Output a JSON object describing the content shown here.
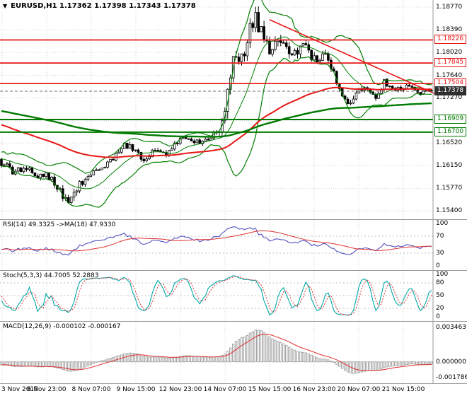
{
  "header": {
    "marker": "▼",
    "ohlc_line": "EURUSD,H1 1.17362 1.17398 1.17343 1.17378"
  },
  "chart_data": {
    "type": "candlestick",
    "symbol": "EURUSD",
    "timeframe": "H1",
    "ohlc": {
      "open": "1.17362",
      "high": "1.17398",
      "low": "1.17343",
      "close": "1.17378"
    },
    "price_axis_ticks": [
      "1.18770",
      "1.18390",
      "1.18020",
      "1.17640",
      "1.17270",
      "1.16890",
      "1.16520",
      "1.16150",
      "1.15770",
      "1.15400"
    ],
    "price_axis_range": [
      1.154,
      1.1877
    ],
    "time_axis_ticks": [
      "3 Nov 2017",
      "6 Nov 23:00",
      "8 Nov 07:00",
      "9 Nov 15:00",
      "12 Nov 23:00",
      "14 Nov 07:00",
      "15 Nov 15:00",
      "16 Nov 23:00",
      "20 Nov 07:00",
      "21 Nov 15:00"
    ],
    "levels": [
      {
        "price": 1.18226,
        "label": "1.18226",
        "color": "#e81616",
        "kind": "resistance"
      },
      {
        "price": 1.17845,
        "label": "1.17845",
        "color": "#e81616",
        "kind": "resistance"
      },
      {
        "price": 1.17504,
        "label": "1.17504",
        "color": "#e81616",
        "kind": "resistance"
      },
      {
        "price": 1.16909,
        "label": "1.16909",
        "color": "#007a00",
        "kind": "support"
      },
      {
        "price": 1.167,
        "label": "1.16700",
        "color": "#007a00",
        "kind": "support"
      }
    ],
    "current_price": {
      "value": 1.17378,
      "label": "1.17378"
    },
    "trendline": {
      "from_bar": 96,
      "from_price": 1.1856,
      "to_bar": 155,
      "to_price": 1.1734
    },
    "bar_count": 155,
    "price_path_keyframes": [
      [
        0,
        1.1618,
        0.0007
      ],
      [
        4,
        1.1606,
        0.0007
      ],
      [
        8,
        1.1611,
        0.0006
      ],
      [
        13,
        1.1597,
        0.0006
      ],
      [
        16,
        1.1603,
        0.0006
      ],
      [
        19,
        1.1585,
        0.0007
      ],
      [
        23,
        1.1559,
        0.0009
      ],
      [
        25,
        1.1554,
        0.001
      ],
      [
        27,
        1.1578,
        0.0008
      ],
      [
        30,
        1.1592,
        0.0006
      ],
      [
        32,
        1.1598,
        0.0006
      ],
      [
        36,
        1.1613,
        0.0006
      ],
      [
        40,
        1.1622,
        0.0006
      ],
      [
        44,
        1.1652,
        0.0007
      ],
      [
        47,
        1.1643,
        0.0006
      ],
      [
        51,
        1.1625,
        0.0006
      ],
      [
        55,
        1.1642,
        0.0006
      ],
      [
        59,
        1.1634,
        0.0006
      ],
      [
        63,
        1.1656,
        0.0006
      ],
      [
        67,
        1.1661,
        0.0005
      ],
      [
        71,
        1.1651,
        0.0005
      ],
      [
        76,
        1.1667,
        0.0006
      ],
      [
        79,
        1.1683,
        0.001
      ],
      [
        81,
        1.1748,
        0.0017
      ],
      [
        83,
        1.1803,
        0.0018
      ],
      [
        86,
        1.1789,
        0.0015
      ],
      [
        89,
        1.1849,
        0.0016
      ],
      [
        91,
        1.1861,
        0.0014
      ],
      [
        94,
        1.182,
        0.0013
      ],
      [
        96,
        1.18,
        0.0012
      ],
      [
        99,
        1.1833,
        0.0012
      ],
      [
        101,
        1.1815,
        0.0011
      ],
      [
        105,
        1.18,
        0.0011
      ],
      [
        109,
        1.1812,
        0.001
      ],
      [
        111,
        1.1795,
        0.001
      ],
      [
        114,
        1.1782,
        0.0009
      ],
      [
        116,
        1.1802,
        0.0009
      ],
      [
        119,
        1.1773,
        0.0009
      ],
      [
        121,
        1.1743,
        0.0009
      ],
      [
        124,
        1.1717,
        0.0009
      ],
      [
        127,
        1.1737,
        0.0007
      ],
      [
        130,
        1.1747,
        0.0006
      ],
      [
        134,
        1.173,
        0.0006
      ],
      [
        137,
        1.1753,
        0.0006
      ],
      [
        141,
        1.1741,
        0.0005
      ],
      [
        146,
        1.1748,
        0.0005
      ],
      [
        150,
        1.1735,
        0.0004
      ],
      [
        154,
        1.17378,
        0.0004
      ]
    ],
    "indicators": [
      {
        "id": "rsi",
        "label": "RSI(14) 49.3325 ->MA(18) 47.9330",
        "axis_ticks": [
          "100",
          "70",
          "30",
          "0"
        ],
        "levels": [
          70,
          30
        ],
        "range": [
          0,
          100
        ]
      },
      {
        "id": "stoch",
        "label": "Stoch(5,3,3) 44.7005 52.2883",
        "axis_ticks": [
          "100",
          "80",
          "50",
          "20",
          "0"
        ],
        "levels": [
          80,
          50,
          20
        ],
        "range": [
          0,
          100
        ]
      },
      {
        "id": "macd",
        "label": "MACD(12,26,9) -0.000102 -0.000167",
        "axis_ticks": [
          "0.003463",
          "0.000000",
          "-0.001786"
        ]
      }
    ],
    "colors": {
      "grid": "#d6d6d6",
      "candle": "#000000",
      "bands": "#008000",
      "ma_red": "#e81616",
      "ma_green": "#007a00",
      "trendline": "#e81616",
      "current_line": "#707070",
      "current_box_bg": "#2f2f2f",
      "rsi_line": "#5050c0",
      "rsi_ma": "#e03030",
      "stoch_k": "#00a8a8",
      "stoch_d": "#e03030",
      "macd_hist": "#9e9e9e",
      "macd_signal": "#e03030",
      "separator": "#9a9a9a"
    }
  }
}
